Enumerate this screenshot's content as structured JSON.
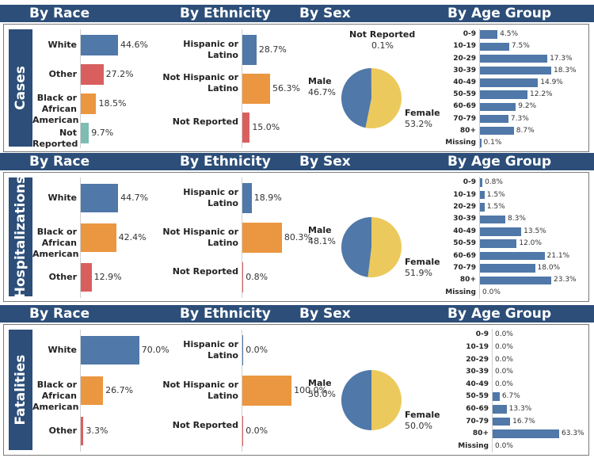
{
  "colors": {
    "header_bg": "#2c4e78",
    "blue": "#5078a8",
    "red": "#d95f5f",
    "orange": "#eb9640",
    "teal": "#7fbcb4",
    "yellow": "#ecc95c"
  },
  "chart_data": [
    {
      "type": "bar",
      "section": "Cases",
      "headers": {
        "race": "By Race",
        "ethnicity": "By Ethnicity",
        "sex": "By Sex",
        "age": "By Age Group"
      },
      "race": {
        "categories": [
          "White",
          "Other",
          "Black or African American",
          "Not Reported"
        ],
        "values": [
          44.6,
          27.2,
          18.5,
          9.7
        ],
        "labels": [
          "44.6%",
          "27.2%",
          "18.5%",
          "9.7%"
        ],
        "colors": [
          "#5078a8",
          "#d95f5f",
          "#eb9640",
          "#7fbcb4"
        ]
      },
      "ethnicity": {
        "categories": [
          "Hispanic or Latino",
          "Not Hispanic or Latino",
          "Not Reported"
        ],
        "values": [
          28.7,
          56.3,
          15.0
        ],
        "labels": [
          "28.7%",
          "56.3%",
          "15.0%"
        ],
        "colors": [
          "#5078a8",
          "#eb9640",
          "#d95f5f"
        ]
      },
      "sex": {
        "type": "pie",
        "categories": [
          "Male",
          "Female",
          "Not Reported"
        ],
        "values": [
          46.7,
          53.2,
          0.1
        ],
        "labels": [
          "46.7%",
          "53.2%",
          "0.1%"
        ],
        "colors": [
          "#5078a8",
          "#ecc95c",
          "#d95f5f"
        ]
      },
      "age": {
        "categories": [
          "0-9",
          "10-19",
          "20-29",
          "30-39",
          "40-49",
          "50-59",
          "60-69",
          "70-79",
          "80+",
          "Missing"
        ],
        "values": [
          4.5,
          7.5,
          17.3,
          18.3,
          14.9,
          12.2,
          9.2,
          7.3,
          8.7,
          0.1
        ],
        "labels": [
          "4.5%",
          "7.5%",
          "17.3%",
          "18.3%",
          "14.9%",
          "12.2%",
          "9.2%",
          "7.3%",
          "8.7%",
          "0.1%"
        ]
      }
    },
    {
      "type": "bar",
      "section": "Hospitalizations",
      "headers": {
        "race": "By Race",
        "ethnicity": "By Ethnicity",
        "sex": "By Sex",
        "age": "By Age Group"
      },
      "race": {
        "categories": [
          "White",
          "Black or African American",
          "Other"
        ],
        "values": [
          44.7,
          42.4,
          12.9
        ],
        "labels": [
          "44.7%",
          "42.4%",
          "12.9%"
        ],
        "colors": [
          "#5078a8",
          "#eb9640",
          "#d95f5f"
        ]
      },
      "ethnicity": {
        "categories": [
          "Hispanic or Latino",
          "Not Hispanic or Latino",
          "Not Reported"
        ],
        "values": [
          18.9,
          80.3,
          0.8
        ],
        "labels": [
          "18.9%",
          "80.3%",
          "0.8%"
        ],
        "colors": [
          "#5078a8",
          "#eb9640",
          "#d95f5f"
        ]
      },
      "sex": {
        "type": "pie",
        "categories": [
          "Male",
          "Female"
        ],
        "values": [
          48.1,
          51.9
        ],
        "labels": [
          "48.1%",
          "51.9%"
        ],
        "colors": [
          "#5078a8",
          "#ecc95c"
        ]
      },
      "age": {
        "categories": [
          "0-9",
          "10-19",
          "20-29",
          "30-39",
          "40-49",
          "50-59",
          "60-69",
          "70-79",
          "80+",
          "Missing"
        ],
        "values": [
          0.8,
          1.5,
          1.5,
          8.3,
          13.5,
          12.0,
          21.1,
          18.0,
          23.3,
          0.0
        ],
        "labels": [
          "0.8%",
          "1.5%",
          "1.5%",
          "8.3%",
          "13.5%",
          "12.0%",
          "21.1%",
          "18.0%",
          "23.3%",
          "0.0%"
        ]
      }
    },
    {
      "type": "bar",
      "section": "Fatalities",
      "headers": {
        "race": "By Race",
        "ethnicity": "By Ethnicity",
        "sex": "By Sex",
        "age": "By Age Group"
      },
      "race": {
        "categories": [
          "White",
          "Black or African American",
          "Other"
        ],
        "values": [
          70.0,
          26.7,
          3.3
        ],
        "labels": [
          "70.0%",
          "26.7%",
          "3.3%"
        ],
        "colors": [
          "#5078a8",
          "#eb9640",
          "#d95f5f"
        ]
      },
      "ethnicity": {
        "categories": [
          "Hispanic or Latino",
          "Not Hispanic or Latino",
          "Not Reported"
        ],
        "values": [
          0.0,
          100.0,
          0.0
        ],
        "labels": [
          "0.0%",
          "100.0%",
          "0.0%"
        ],
        "colors": [
          "#5078a8",
          "#eb9640",
          "#d95f5f"
        ]
      },
      "sex": {
        "type": "pie",
        "categories": [
          "Male",
          "Female"
        ],
        "values": [
          50.0,
          50.0
        ],
        "labels": [
          "50.0%",
          "50.0%"
        ],
        "colors": [
          "#5078a8",
          "#ecc95c"
        ]
      },
      "age": {
        "categories": [
          "0-9",
          "10-19",
          "20-29",
          "30-39",
          "40-49",
          "50-59",
          "60-69",
          "70-79",
          "80+",
          "Missing"
        ],
        "values": [
          0.0,
          0.0,
          0.0,
          0.0,
          0.0,
          6.7,
          13.3,
          16.7,
          63.3,
          0.0
        ],
        "labels": [
          "0.0%",
          "0.0%",
          "0.0%",
          "0.0%",
          "0.0%",
          "6.7%",
          "13.3%",
          "16.7%",
          "63.3%",
          "0.0%"
        ]
      }
    }
  ]
}
